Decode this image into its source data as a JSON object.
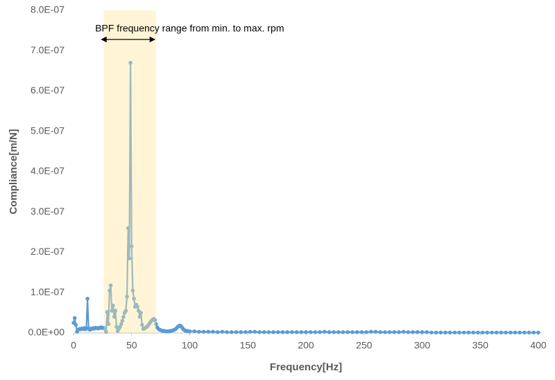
{
  "chart_data": {
    "type": "line",
    "xlabel": "Frequency[Hz]",
    "ylabel": "Compliance[m/N]",
    "annotation": {
      "text": "BPF frequency range from min. to max. rpm",
      "arrow": [
        24,
        70
      ]
    },
    "shaded_region": {
      "range": [
        26,
        71
      ],
      "color": "#ffe699"
    },
    "xlim": [
      0,
      400
    ],
    "xticks": [
      0,
      50,
      100,
      150,
      200,
      250,
      300,
      350,
      400
    ],
    "ylim": [
      0,
      8e-07
    ],
    "yticks": [
      {
        "value": 0,
        "label": "0.0E+00"
      },
      {
        "value": 1e-07,
        "label": "1.0E-07"
      },
      {
        "value": 2e-07,
        "label": "2.0E-07"
      },
      {
        "value": 3e-07,
        "label": "3.0E-07"
      },
      {
        "value": 4e-07,
        "label": "4.0E-07"
      },
      {
        "value": 5e-07,
        "label": "5.0E-07"
      },
      {
        "value": 6e-07,
        "label": "6.0E-07"
      },
      {
        "value": 7e-07,
        "label": "7.0E-07"
      },
      {
        "value": 8e-07,
        "label": "8.0E-07"
      }
    ],
    "grid": false,
    "x": [
      0,
      1,
      2,
      3,
      4,
      5,
      6,
      7,
      8,
      9,
      10,
      11,
      12,
      13,
      14,
      15,
      16,
      17,
      18,
      19,
      20,
      21,
      22,
      23,
      24,
      25,
      26,
      27,
      28,
      29,
      30,
      31,
      32,
      33,
      34,
      35,
      36,
      37,
      38,
      39,
      40,
      41,
      42,
      43,
      44,
      45,
      46,
      47,
      48,
      49,
      50,
      51,
      52,
      53,
      54,
      55,
      56,
      57,
      58,
      59,
      60,
      61,
      62,
      63,
      64,
      65,
      66,
      67,
      68,
      69,
      70,
      71,
      72,
      73,
      74,
      75,
      76,
      77,
      78,
      79,
      80,
      81,
      82,
      83,
      84,
      85,
      86,
      87,
      88,
      89,
      90,
      91,
      92,
      93,
      94,
      95,
      96,
      97,
      98,
      99,
      100,
      104,
      108,
      112,
      116,
      120,
      124,
      128,
      132,
      136,
      140,
      144,
      148,
      152,
      156,
      160,
      164,
      168,
      172,
      176,
      180,
      184,
      188,
      192,
      196,
      200,
      204,
      208,
      212,
      216,
      220,
      224,
      228,
      232,
      236,
      240,
      244,
      248,
      252,
      256,
      260,
      264,
      268,
      272,
      276,
      280,
      284,
      288,
      292,
      296,
      300,
      304,
      308,
      312,
      316,
      320,
      324,
      328,
      332,
      336,
      340,
      344,
      348,
      352,
      356,
      360,
      364,
      368,
      372,
      376,
      380,
      384,
      388,
      392,
      396,
      400
    ],
    "series": [
      {
        "color": "#5b9bd5",
        "values": [
          2.5e-08,
          3.7e-08,
          2e-08,
          3e-09,
          8e-09,
          1e-08,
          9e-09,
          1.1e-08,
          1e-08,
          1.2e-08,
          9e-09,
          1.2e-08,
          8.5e-08,
          1e-08,
          8e-09,
          1.1e-08,
          1e-08,
          1.2e-08,
          1.1e-08,
          1.3e-08,
          1.2e-08,
          1.1e-08,
          1.3e-08,
          1.2e-08,
          1.4e-08,
          1.2e-08,
          1.3e-08,
          1e-08,
          3e-09,
          5.2e-08,
          2.2e-08,
          1.05e-07,
          1.18e-07,
          5.5e-08,
          6.8e-08,
          4e-08,
          5.5e-08,
          1.5e-08,
          5e-09,
          1e-08,
          1.5e-08,
          2.2e-08,
          3e-08,
          4e-08,
          5e-08,
          5.5e-08,
          9e-08,
          2.6e-07,
          1.85e-07,
          6.7e-07,
          2.15e-07,
          1.05e-07,
          8.5e-08,
          6.5e-08,
          7e-08,
          6.5e-08,
          5.5e-08,
          4e-08,
          5e-08,
          2e-08,
          1e-08,
          1.1e-08,
          1.3e-08,
          1.5e-08,
          1.8e-08,
          2.2e-08,
          2.6e-08,
          3e-08,
          3.3e-08,
          3.5e-08,
          3.2e-08,
          2.2e-08,
          1.4e-08,
          1e-08,
          8e-09,
          7e-09,
          6e-09,
          5e-09,
          5e-09,
          4e-09,
          4e-09,
          4e-09,
          4e-09,
          5e-09,
          5e-09,
          6e-09,
          7e-09,
          8e-09,
          1e-08,
          1.3e-08,
          1.6e-08,
          1.8e-08,
          1.8e-08,
          1.5e-08,
          1.1e-08,
          8e-09,
          6e-09,
          5e-09,
          5e-09,
          4e-09,
          4e-09,
          4e-09,
          3e-09,
          3e-09,
          3e-09,
          3e-09,
          2e-09,
          3e-09,
          2e-09,
          2e-09,
          2e-09,
          2e-09,
          2e-09,
          3e-09,
          3e-09,
          2e-09,
          2e-09,
          2e-09,
          2e-09,
          2e-09,
          2e-09,
          2e-09,
          2e-09,
          2e-09,
          2e-09,
          2e-09,
          2e-09,
          2e-09,
          2e-09,
          3e-09,
          2e-09,
          2e-09,
          2e-09,
          2e-09,
          2e-09,
          2e-09,
          2e-09,
          2e-09,
          2e-09,
          3e-09,
          3e-09,
          2e-09,
          2e-09,
          2e-09,
          2e-09,
          2e-09,
          3e-09,
          2e-09,
          2e-09,
          2e-09,
          2e-09,
          2e-09,
          1e-09,
          1e-09,
          1e-09,
          1e-09,
          1e-09,
          1e-09,
          1e-09,
          1e-09,
          1e-09,
          1e-09,
          1e-09,
          1e-09,
          1e-09,
          1e-09,
          1e-09,
          1e-09,
          1e-09,
          1e-09,
          1e-09,
          1e-09,
          1e-09,
          1e-09,
          1e-09,
          1e-09
        ]
      }
    ]
  }
}
